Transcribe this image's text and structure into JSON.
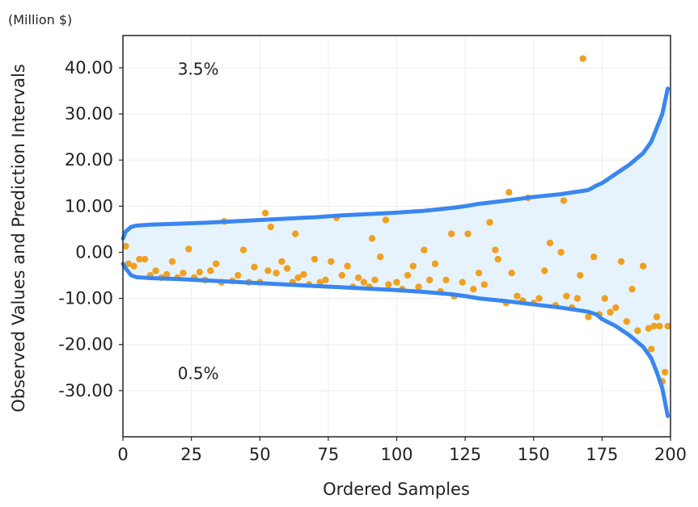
{
  "chart_data": {
    "type": "scatter",
    "unit_label": "(Million $)",
    "xlabel": "Ordered Samples",
    "ylabel": "Observed Values and Prediction Intervals",
    "xlim": [
      0,
      200
    ],
    "ylim": [
      -40,
      47
    ],
    "x_ticks": [
      0,
      25,
      50,
      75,
      100,
      125,
      150,
      175,
      200
    ],
    "x_tick_labels": [
      "0",
      "25",
      "50",
      "75",
      "100",
      "125",
      "150",
      "175",
      "200"
    ],
    "y_ticks": [
      40,
      30,
      20,
      10,
      0,
      -10,
      -20,
      -30
    ],
    "y_tick_labels": [
      "40.00",
      "30.00",
      "20.00",
      "10.00",
      "0.00",
      "-10.00",
      "-20.00",
      "-30.00"
    ],
    "grid": true,
    "annotations": [
      {
        "text": "3.5%",
        "x": 20,
        "y": 38.5
      },
      {
        "text": "0.5%",
        "x": 20,
        "y": -27.5
      }
    ],
    "colors": {
      "band_fill": "#e6f3fd",
      "band_line": "#3a86f0",
      "points": "#f0a020",
      "grid": "#ececec",
      "axis": "#222222"
    },
    "series": [
      {
        "name": "upper prediction interval",
        "type": "line",
        "x": [
          0,
          1,
          3,
          5,
          10,
          20,
          30,
          40,
          50,
          60,
          70,
          80,
          90,
          100,
          110,
          120,
          125,
          130,
          140,
          150,
          160,
          170,
          173,
          175,
          180,
          185,
          190,
          193,
          195,
          197,
          199
        ],
        "y": [
          3.0,
          4.5,
          5.5,
          5.8,
          6.0,
          6.2,
          6.4,
          6.7,
          7.0,
          7.3,
          7.6,
          8.0,
          8.3,
          8.6,
          9.0,
          9.6,
          10.0,
          10.5,
          11.2,
          12.0,
          12.6,
          13.5,
          14.5,
          15.0,
          17.0,
          19.0,
          21.5,
          24.0,
          27.0,
          30.0,
          35.5
        ]
      },
      {
        "name": "lower prediction interval",
        "type": "line",
        "x": [
          0,
          1,
          3,
          5,
          10,
          20,
          30,
          40,
          50,
          60,
          70,
          80,
          90,
          100,
          110,
          120,
          125,
          130,
          140,
          150,
          160,
          170,
          173,
          175,
          180,
          185,
          190,
          193,
          195,
          197,
          199
        ],
        "y": [
          -2.5,
          -3.5,
          -5.0,
          -5.4,
          -5.6,
          -5.8,
          -6.1,
          -6.4,
          -6.7,
          -7.0,
          -7.3,
          -7.6,
          -7.9,
          -8.2,
          -8.6,
          -9.1,
          -9.5,
          -10.0,
          -10.6,
          -11.3,
          -12.0,
          -12.9,
          -13.5,
          -14.5,
          -16.0,
          -18.0,
          -20.5,
          -23.0,
          -26.0,
          -29.5,
          -35.5
        ]
      },
      {
        "name": "observed values",
        "type": "scatter",
        "x": [
          1,
          2,
          4,
          6,
          8,
          10,
          12,
          14,
          16,
          18,
          20,
          22,
          24,
          26,
          28,
          30,
          32,
          34,
          36,
          37,
          40,
          42,
          44,
          46,
          48,
          50,
          52,
          53,
          54,
          56,
          58,
          60,
          62,
          63,
          64,
          66,
          68,
          70,
          72,
          74,
          76,
          78,
          80,
          82,
          84,
          86,
          88,
          90,
          91,
          92,
          94,
          96,
          97,
          100,
          102,
          104,
          106,
          108,
          110,
          112,
          114,
          116,
          118,
          120,
          121,
          124,
          126,
          128,
          130,
          132,
          134,
          136,
          137,
          140,
          141,
          142,
          144,
          146,
          148,
          150,
          152,
          154,
          156,
          158,
          160,
          161,
          162,
          164,
          166,
          167,
          168,
          170,
          172,
          174,
          176,
          178,
          180,
          182,
          184,
          186,
          188,
          190,
          192,
          193,
          194,
          195,
          196,
          197,
          198,
          199
        ],
        "y": [
          1.3,
          -2.5,
          -3.0,
          -1.5,
          -1.5,
          -5.0,
          -4.0,
          -5.5,
          -4.8,
          -2.0,
          -5.5,
          -4.5,
          0.7,
          -5.5,
          -4.3,
          -6.0,
          -4.0,
          -2.5,
          -6.5,
          6.7,
          -6.2,
          -5.0,
          0.5,
          -6.5,
          -3.2,
          -6.5,
          8.5,
          -4.0,
          5.5,
          -4.5,
          -2.0,
          -3.5,
          -6.5,
          4.0,
          -5.5,
          -4.8,
          -7.0,
          -1.5,
          -6.5,
          -6.0,
          -2.0,
          7.5,
          -5.0,
          -3.0,
          -7.5,
          -5.5,
          -6.5,
          -7.5,
          3.0,
          -6.0,
          -1.0,
          7.0,
          -7.0,
          -6.5,
          -8.0,
          -5.0,
          -3.0,
          -7.5,
          0.5,
          -6.0,
          -2.5,
          -8.5,
          -6.0,
          4.0,
          -9.5,
          -6.5,
          4.0,
          -8.0,
          -4.5,
          -7.0,
          6.5,
          0.5,
          -1.5,
          -11.0,
          13.0,
          -4.5,
          -9.5,
          -10.5,
          11.8,
          -11.0,
          -10.0,
          -4.0,
          2.0,
          -11.5,
          0.0,
          11.2,
          -9.5,
          -12.0,
          -10.0,
          -5.0,
          42.0,
          -14.0,
          -1.0,
          -13.5,
          -10.0,
          -13.0,
          -12.0,
          -2.0,
          -15.0,
          -8.0,
          -17.0,
          -3.0,
          -16.5,
          -21.0,
          -16.0,
          -14.0,
          -16.0,
          -28.0,
          -26.0,
          -16.0
        ]
      }
    ]
  }
}
